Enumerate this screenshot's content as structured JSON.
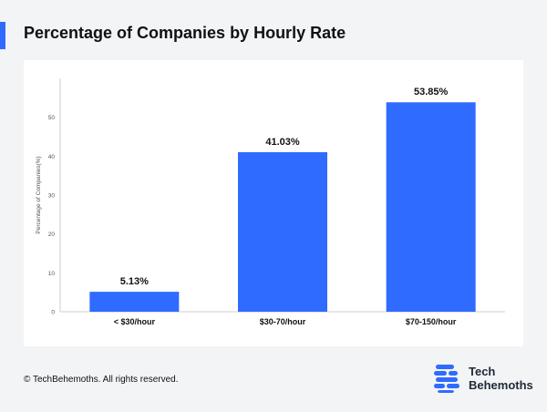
{
  "header": {
    "title": "Percentage of Companies by Hourly Rate"
  },
  "footer": {
    "copyright": "© TechBehemoths. All rights reserved.",
    "brand_line1": "Tech",
    "brand_line2": "Behemoths"
  },
  "colors": {
    "accent": "#2f6bff",
    "bar": "#2f6bff",
    "logo": "#2f6bff"
  },
  "icons": {
    "logo": "techbehemoths-logo-icon"
  },
  "chart_data": {
    "type": "bar",
    "categories": [
      "< $30/hour",
      "$30-70/hour",
      "$70-150/hour"
    ],
    "values": [
      5.13,
      41.03,
      53.85
    ],
    "data_labels": [
      "5.13%",
      "41.03%",
      "53.85%"
    ],
    "ylabel": "Percentage of Companies(%)",
    "ylim": [
      0,
      60
    ],
    "yticks": [
      0,
      10,
      20,
      30,
      40,
      50
    ],
    "grid": false,
    "legend": "none"
  }
}
